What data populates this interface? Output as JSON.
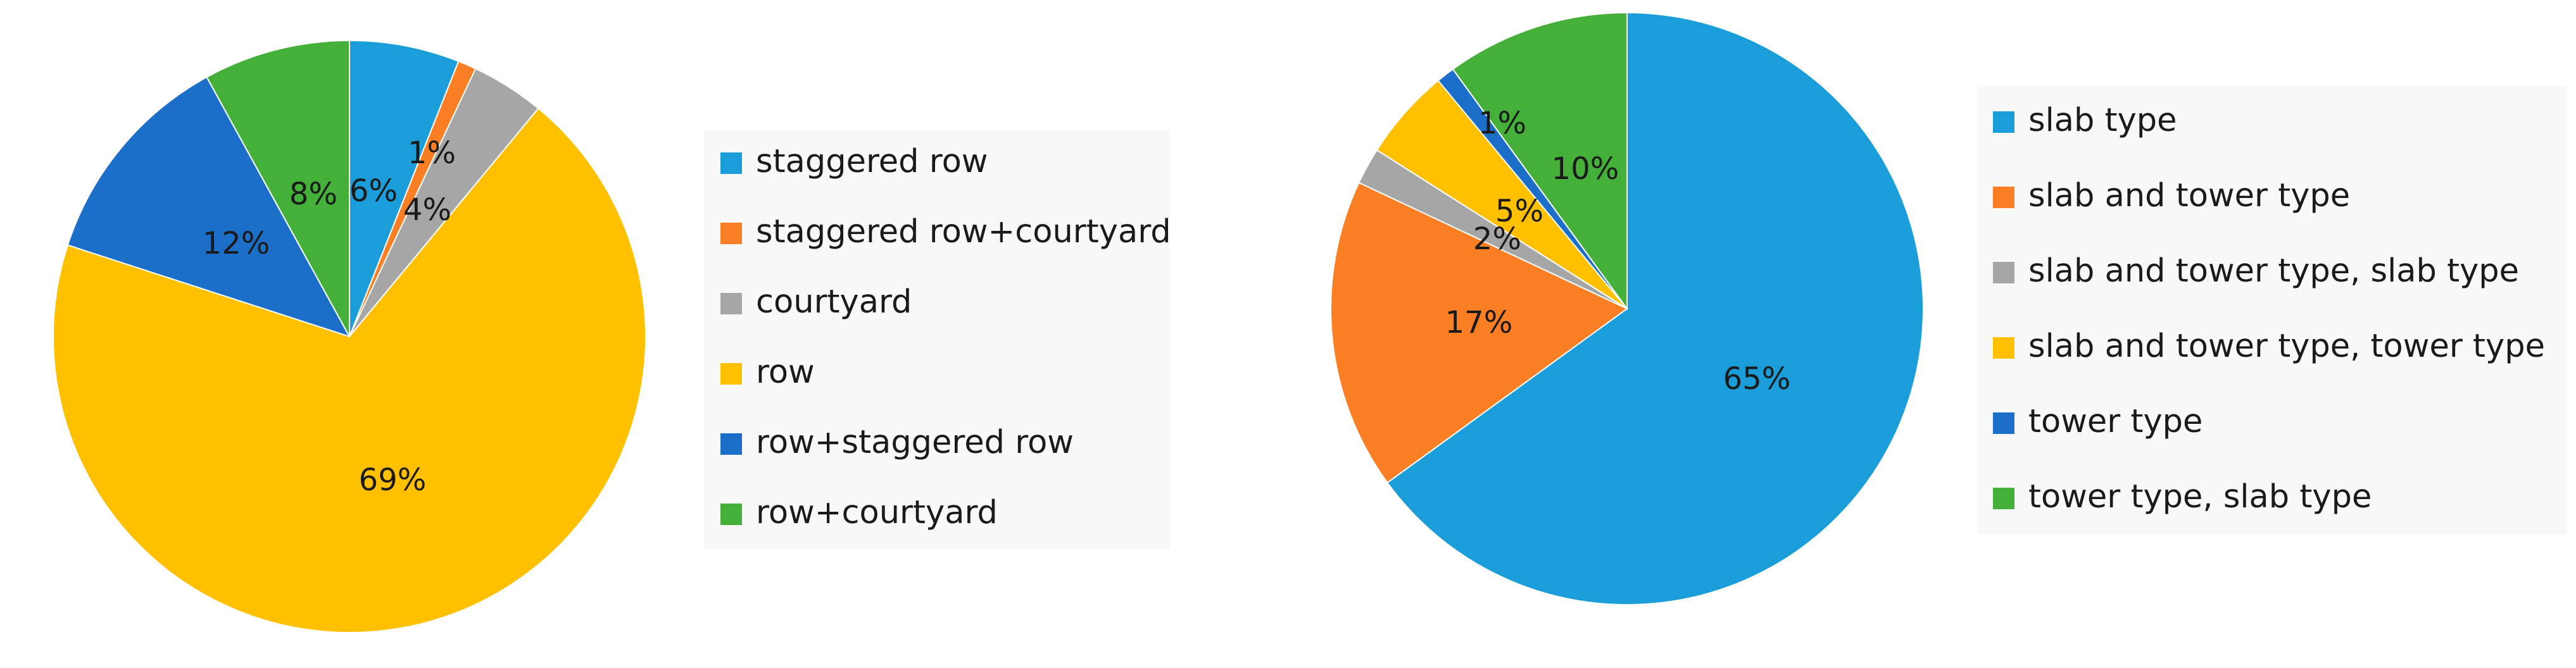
{
  "chart_data": [
    {
      "type": "pie",
      "title": "",
      "legend_position": "right",
      "categories": [
        "staggered row",
        "staggered row+courtyard",
        "courtyard",
        "row",
        "row+staggered row",
        "row+courtyard"
      ],
      "values": [
        6,
        1,
        4,
        69,
        12,
        8
      ],
      "labels": [
        "6%",
        "1%",
        "4%",
        "69%",
        "12%",
        "8%"
      ],
      "colors": [
        "#1b9dd9",
        "#fa7e23",
        "#a6a6a6",
        "#ffc000",
        "#1b6fc8",
        "#44b039"
      ]
    },
    {
      "type": "pie",
      "title": "",
      "legend_position": "right",
      "categories": [
        "slab type",
        "slab and tower type",
        "slab and tower type, slab type",
        "slab and tower type, tower type",
        "tower type",
        "tower type, slab type"
      ],
      "values": [
        65,
        17,
        2,
        5,
        1,
        10
      ],
      "labels": [
        "65%",
        "17%",
        "2%",
        "5%",
        "1%",
        "10%"
      ],
      "colors": [
        "#1b9dd9",
        "#fa7e23",
        "#a6a6a6",
        "#ffc000",
        "#1b6fc8",
        "#44b039"
      ]
    }
  ]
}
